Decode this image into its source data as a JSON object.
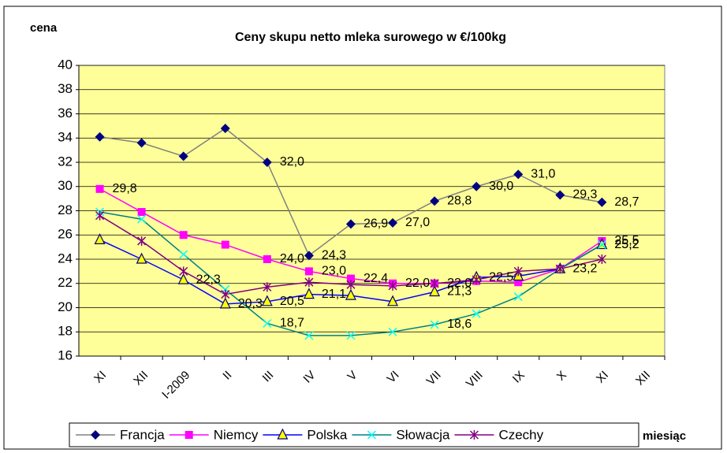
{
  "chart_data": {
    "type": "line",
    "title": "Ceny skupu netto mleka surowego  w €/100kg",
    "y_label": "cena",
    "x_label": "miesiąc",
    "categories": [
      "XI",
      "XII",
      "I-2009",
      "II",
      "III",
      "IV",
      "V",
      "VI",
      "VII",
      "VIII",
      "IX",
      "X",
      "XI",
      "XII"
    ],
    "ylim": [
      16,
      40
    ],
    "yticks": [
      16,
      18,
      20,
      22,
      24,
      26,
      28,
      30,
      32,
      34,
      36,
      38,
      40
    ],
    "grid": true,
    "legend": "bottom",
    "series": [
      {
        "name": "Francja",
        "color": "#808080",
        "marker_color": "#000080",
        "marker": "diamond",
        "values": [
          34.1,
          33.6,
          32.5,
          34.8,
          32.0,
          24.3,
          26.9,
          27.0,
          28.8,
          30.0,
          31.0,
          29.3,
          28.7,
          null
        ],
        "value_labels": [
          null,
          null,
          null,
          null,
          "32,0",
          "24,3",
          "26,9",
          "27,0",
          "28,8",
          "30,0",
          "31,0",
          "29,3",
          "28,7",
          null
        ]
      },
      {
        "name": "Niemcy",
        "color": "#FF00FF",
        "marker_color": "#FF00FF",
        "marker": "square",
        "values": [
          29.8,
          27.9,
          26.0,
          25.2,
          24.0,
          23.0,
          22.4,
          22.0,
          22.0,
          22.2,
          22.1,
          23.2,
          25.5,
          null
        ],
        "value_labels": [
          "29,8",
          null,
          null,
          null,
          "24,0",
          "23,0",
          "22,4",
          "22,0",
          null,
          null,
          null,
          null,
          "25,5",
          null
        ]
      },
      {
        "name": "Polska",
        "color": "#0000FF",
        "marker_color": "#FFFF00",
        "marker": "triangle",
        "values": [
          25.6,
          24.0,
          22.3,
          20.3,
          20.5,
          21.1,
          21.0,
          20.5,
          21.3,
          22.5,
          22.6,
          23.2,
          25.2,
          null
        ],
        "value_labels": [
          null,
          null,
          "22,3",
          "20,3",
          "20,5",
          "21,1",
          null,
          null,
          "21,3",
          "22,5",
          null,
          "23,2",
          "25,2",
          null
        ]
      },
      {
        "name": "Słowacja",
        "color": "#008080",
        "marker_color": "#00FFFF",
        "marker": "x",
        "values": [
          27.9,
          27.3,
          24.4,
          21.5,
          18.7,
          17.7,
          17.7,
          18.0,
          18.6,
          19.5,
          20.9,
          23.2,
          25.2,
          null
        ],
        "value_labels": [
          null,
          null,
          null,
          null,
          "18,7",
          null,
          null,
          null,
          "18,6",
          null,
          null,
          null,
          "25,2",
          null
        ]
      },
      {
        "name": "Czechy",
        "color": "#800080",
        "marker_color": "#800080",
        "marker": "star",
        "values": [
          27.6,
          25.5,
          23.0,
          21.1,
          21.7,
          22.1,
          21.9,
          21.8,
          22.0,
          22.3,
          23.0,
          23.2,
          24.0,
          null
        ],
        "value_labels": [
          null,
          null,
          null,
          null,
          null,
          null,
          null,
          null,
          "22,0",
          null,
          null,
          null,
          null,
          null
        ]
      }
    ]
  }
}
